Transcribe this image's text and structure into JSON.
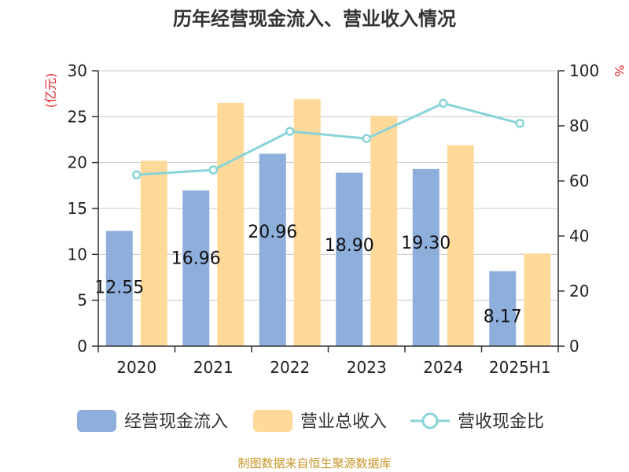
{
  "chart_data": {
    "type": "bar",
    "title": "历年经营现金流入、营业收入情况",
    "categories": [
      "2020",
      "2021",
      "2022",
      "2023",
      "2024",
      "2025H1"
    ],
    "series": [
      {
        "name": "经营现金流入",
        "type": "bar",
        "axis": "left",
        "values": [
          12.55,
          16.96,
          20.96,
          18.9,
          19.3,
          8.17
        ]
      },
      {
        "name": "营业总收入",
        "type": "bar",
        "axis": "left",
        "values": [
          20.2,
          26.5,
          26.9,
          25.1,
          21.9,
          10.1
        ]
      },
      {
        "name": "营收现金比",
        "type": "line",
        "axis": "right",
        "values": [
          62.2,
          64.0,
          78.0,
          75.4,
          88.2,
          80.9
        ]
      }
    ],
    "data_labels": [
      "12.55",
      "16.96",
      "20.96",
      "18.90",
      "19.30",
      "8.17"
    ],
    "y_left": {
      "unit": "(亿元)",
      "ylim": [
        0,
        30
      ],
      "ticks": [
        "0",
        "5",
        "10",
        "15",
        "20",
        "25",
        "30"
      ]
    },
    "y_right": {
      "unit": "%",
      "ylim": [
        0,
        100
      ],
      "ticks": [
        "0",
        "20",
        "40",
        "60",
        "80",
        "100"
      ]
    },
    "grid": true,
    "legend_position": "bottom",
    "colors": {
      "bar1": "#8eaedc",
      "bar2": "#ffd99a",
      "line": "#88d4d8",
      "unit_text": "#e0242a"
    }
  },
  "source": {
    "text": "制图数据来自恒生聚源数据库",
    "color": "#c8962a"
  }
}
